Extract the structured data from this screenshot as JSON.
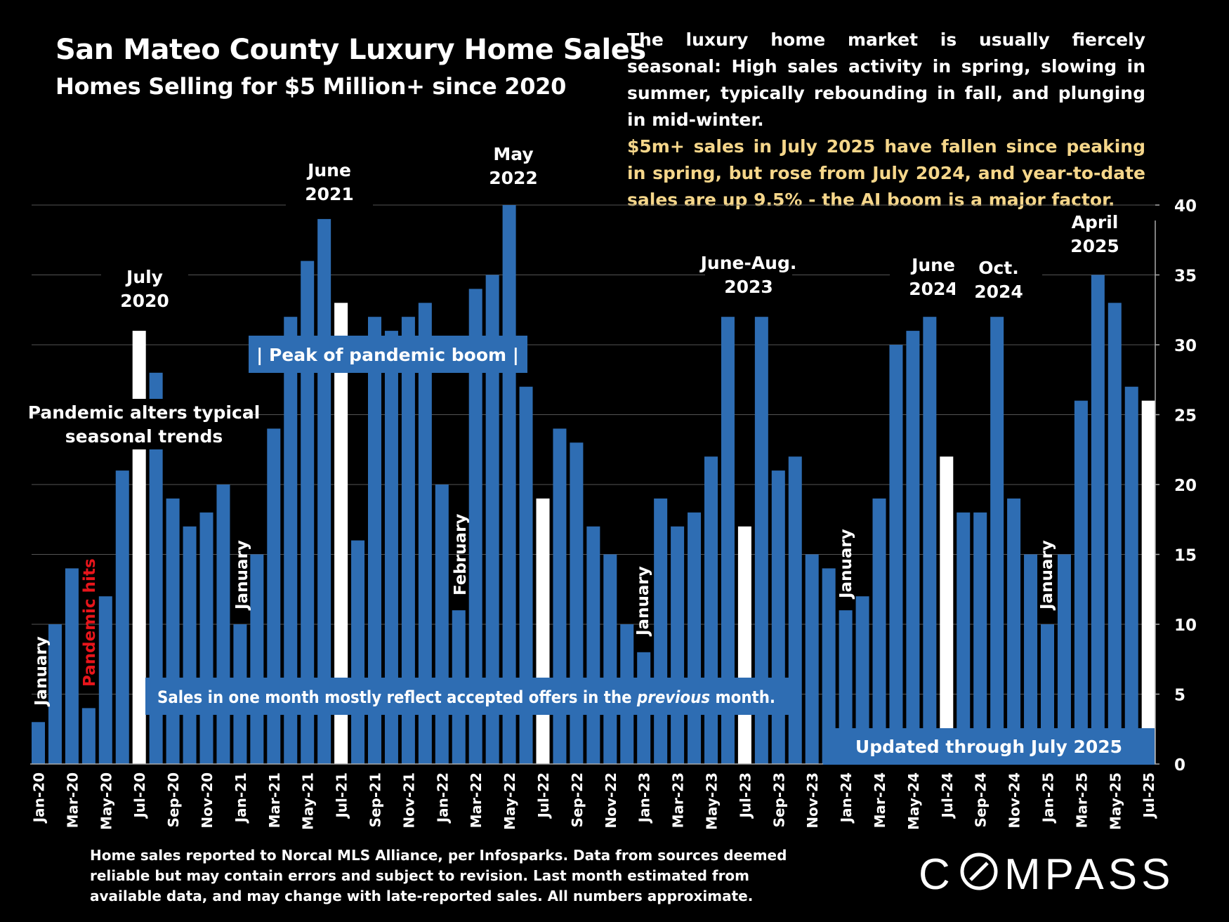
{
  "header": {
    "title": "San Mateo County Luxury Home Sales",
    "subtitle": "Homes Selling for $5 Million+ since 2020"
  },
  "description": {
    "paragraph1": "The luxury home market is usually fiercely seasonal: High sales activity in spring, slowing in summer, typically rebounding in fall, and plunging in mid-winter.",
    "paragraph2": "$5m+ sales in July 2025 have fallen since peaking in spring, but rose from July 2024, and year-to-date sales are up 9.5% - the AI boom is a major factor."
  },
  "footnote": "Home sales reported to Norcal MLS Alliance, per Infosparks. Data from sources deemed reliable but may contain errors and subject to revision.  Last month estimated from available data, and may change with late-reported sales. All numbers approximate.",
  "logo": {
    "text": "COMPASS"
  },
  "colors": {
    "bar": "#2e6db3",
    "highlight": "#ffffff",
    "red": "#e8151b",
    "background": "#000000",
    "gridline": "#555555"
  },
  "chart_data": {
    "type": "bar",
    "categories": [
      "Jan-20",
      "Feb-20",
      "Mar-20",
      "Apr-20",
      "May-20",
      "Jun-20",
      "Jul-20",
      "Aug-20",
      "Sep-20",
      "Oct-20",
      "Nov-20",
      "Dec-20",
      "Jan-21",
      "Feb-21",
      "Mar-21",
      "Apr-21",
      "May-21",
      "Jun-21",
      "Jul-21",
      "Aug-21",
      "Sep-21",
      "Oct-21",
      "Nov-21",
      "Dec-21",
      "Jan-22",
      "Feb-22",
      "Mar-22",
      "Apr-22",
      "May-22",
      "Jun-22",
      "Jul-22",
      "Aug-22",
      "Sep-22",
      "Oct-22",
      "Nov-22",
      "Dec-22",
      "Jan-23",
      "Feb-23",
      "Mar-23",
      "Apr-23",
      "May-23",
      "Jun-23",
      "Jul-23",
      "Aug-23",
      "Sep-23",
      "Oct-23",
      "Nov-23",
      "Dec-23",
      "Jan-24",
      "Feb-24",
      "Mar-24",
      "Apr-24",
      "May-24",
      "Jun-24",
      "Jul-24",
      "Aug-24",
      "Sep-24",
      "Oct-24",
      "Nov-24",
      "Dec-24",
      "Jan-25",
      "Feb-25",
      "Mar-25",
      "Apr-25",
      "May-25",
      "Jun-25",
      "Jul-25"
    ],
    "values": [
      3,
      10,
      14,
      4,
      12,
      21,
      31,
      28,
      19,
      17,
      18,
      20,
      10,
      15,
      24,
      32,
      36,
      39,
      33,
      16,
      32,
      31,
      32,
      33,
      20,
      11,
      34,
      35,
      40,
      27,
      19,
      24,
      23,
      17,
      15,
      10,
      8,
      19,
      17,
      18,
      22,
      32,
      17,
      32,
      21,
      22,
      15,
      14,
      11,
      12,
      19,
      30,
      31,
      32,
      22,
      18,
      18,
      32,
      19,
      15,
      10,
      15,
      26,
      35,
      33,
      27,
      26
    ],
    "highlight_months": [
      "Jul-20",
      "Jul-21",
      "Jul-22",
      "Jul-23",
      "Jul-24",
      "Jul-25"
    ],
    "tick_labels": [
      "Jan-20",
      "Mar-20",
      "May-20",
      "Jul-20",
      "Sep-20",
      "Nov-20",
      "Jan-21",
      "Mar-21",
      "May-21",
      "Jul-21",
      "Sep-21",
      "Nov-21",
      "Jan-22",
      "Mar-22",
      "May-22",
      "Jul-22",
      "Sep-22",
      "Nov-22",
      "Jan-23",
      "Mar-23",
      "May-23",
      "Jul-23",
      "Sep-23",
      "Nov-23",
      "Jan-24",
      "Mar-24",
      "May-24",
      "Jul-24",
      "Sep-24",
      "Nov-24",
      "Jan-25",
      "Mar-25",
      "May-25",
      "Jul-25"
    ],
    "y_ticks": [
      0,
      5,
      10,
      15,
      20,
      25,
      30,
      35,
      40
    ],
    "ylim": [
      0,
      40
    ],
    "y_axis_side": "right",
    "grid": true,
    "annotations": {
      "peak_labels": [
        {
          "month": "Jul-20",
          "lines": [
            "July",
            "2020"
          ]
        },
        {
          "month": "Jun-21",
          "lines": [
            "June",
            "2021"
          ]
        },
        {
          "month": "May-22",
          "lines": [
            "May",
            "2022"
          ]
        },
        {
          "month": "Jul-23",
          "lines": [
            "June-Aug.",
            "2023"
          ]
        },
        {
          "month": "Jun-24",
          "lines": [
            "June",
            "2024"
          ]
        },
        {
          "month": "Oct-24",
          "lines": [
            "Oct.",
            "2024"
          ]
        },
        {
          "month": "Apr-25",
          "lines": [
            "April",
            "2025"
          ]
        }
      ],
      "vertical_labels": [
        {
          "month": "Jan-20",
          "text": "January",
          "color": "white"
        },
        {
          "month": "Apr-20",
          "text": "Pandemic hits",
          "color": "red"
        },
        {
          "month": "Jan-21",
          "text": "January",
          "color": "white"
        },
        {
          "month": "Feb-22",
          "text": "February",
          "color": "white"
        },
        {
          "month": "Jan-23",
          "text": "January",
          "color": "white"
        },
        {
          "month": "Jan-24",
          "text": "January",
          "color": "white"
        },
        {
          "month": "Jan-25",
          "text": "January",
          "color": "white"
        }
      ],
      "pandemic_note": [
        "Pandemic alters typical",
        "seasonal trends"
      ],
      "peak_box": {
        "left_bar": "|",
        "text": "Peak of pandemic boom",
        "right_bar": "|"
      },
      "offers_note": {
        "before": "Sales in one month mostly reflect accepted offers in the ",
        "emphasis": "previous",
        "after": " month."
      },
      "updated_note": "Updated through July 2025"
    }
  }
}
